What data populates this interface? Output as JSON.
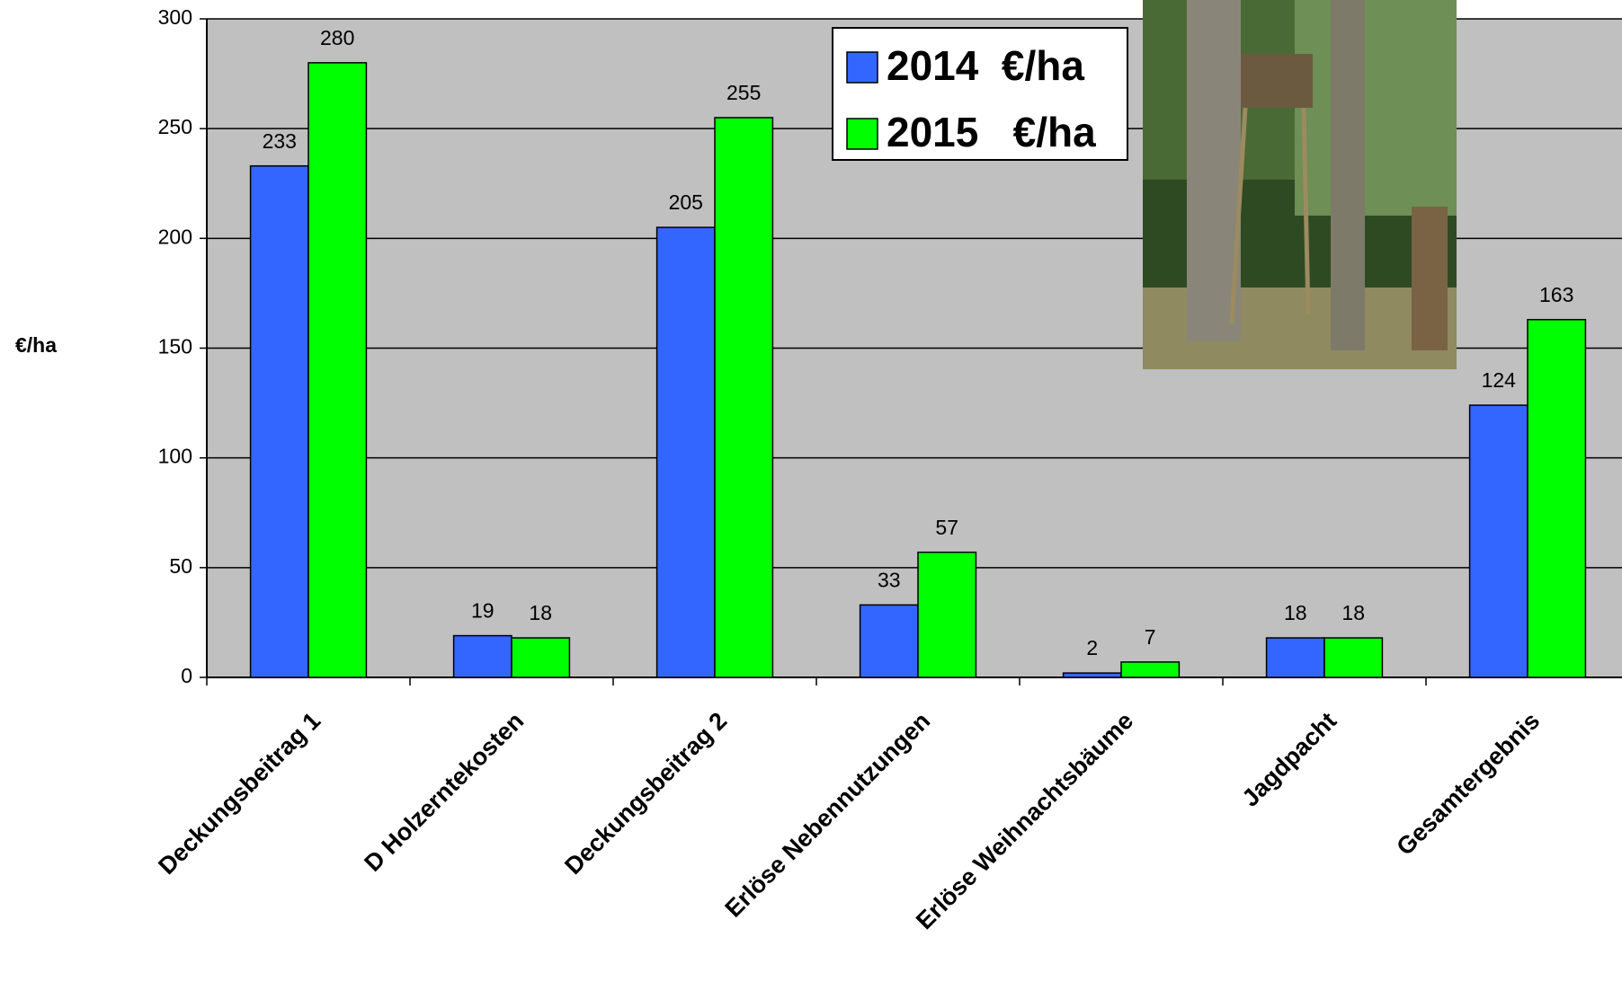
{
  "chart_data": {
    "type": "bar",
    "ylabel": "€/ha",
    "categories": [
      "Deckungsbeitrag 1",
      "D Holzerntekosten",
      "Deckungsbeitrag 2",
      "Erlöse Nebennutzungen",
      "Erlöse Weihnachtsbäume",
      "Jagdpacht",
      "Gesamtergebnis"
    ],
    "series": [
      {
        "name": "2014  €/ha",
        "color": "#3366ff",
        "values": [
          233,
          19,
          205,
          33,
          2,
          18,
          124
        ]
      },
      {
        "name": "2015   €/ha",
        "color": "#00ff00",
        "values": [
          280,
          18,
          255,
          57,
          7,
          18,
          163
        ]
      }
    ],
    "ylim": [
      0,
      300
    ],
    "yticks": [
      0,
      50,
      100,
      150,
      200,
      250,
      300
    ],
    "grid": true
  }
}
